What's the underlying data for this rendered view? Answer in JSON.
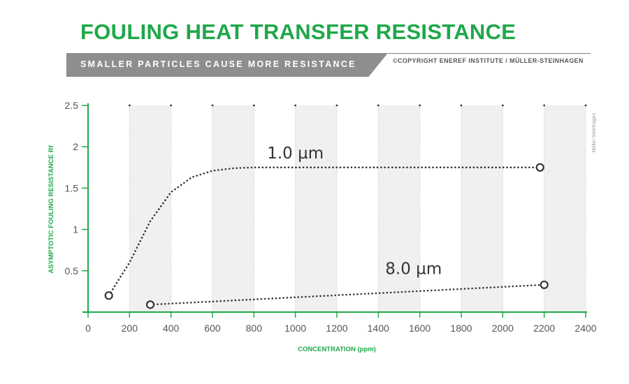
{
  "header": {
    "title": "FOULING HEAT TRANSFER RESISTANCE",
    "subtitle": "SMALLER PARTICLES CAUSE MORE RESISTANCE",
    "copyright": "©COPYRIGHT ENEREF INSTITUTE / MÜLLER-STEINHAGEN"
  },
  "colors": {
    "accent": "#1fa84a",
    "banner": "#8d8e8f",
    "series": "#333333",
    "panel": "#f0f0f0"
  },
  "chart_data": {
    "type": "line",
    "title": "FOULING HEAT TRANSFER RESISTANCE",
    "subtitle": "SMALLER PARTICLES CAUSE MORE RESISTANCE",
    "xlabel": "CONCENTRATION (ppm)",
    "ylabel": "ASYMPTOTIC FOULING RESISTANCE Rf",
    "xlim": [
      0,
      2400
    ],
    "ylim": [
      0,
      2.5
    ],
    "xticks": [
      0,
      200,
      400,
      600,
      800,
      1000,
      1200,
      1400,
      1600,
      1800,
      2000,
      2200,
      2400
    ],
    "yticks": [
      0.5,
      1,
      1.5,
      2,
      2.5
    ],
    "xtick_labels": [
      "0",
      "200",
      "400",
      "600",
      "800",
      "1000",
      "1200",
      "1400",
      "1600",
      "1800",
      "2000",
      "2200",
      "2400"
    ],
    "ytick_labels": [
      "0.5",
      "1",
      "1.5",
      "2",
      "2.5"
    ],
    "grid": "vertical dotted",
    "watermark": "Müller-Steinhagen",
    "series": [
      {
        "name": "1.0 µm",
        "line_style": "dotted",
        "x": [
          100,
          200,
          300,
          400,
          500,
          600,
          700,
          800,
          1000,
          1500,
          2000,
          2180
        ],
        "y": [
          0.2,
          0.6,
          1.1,
          1.45,
          1.63,
          1.71,
          1.74,
          1.75,
          1.75,
          1.75,
          1.75,
          1.75
        ],
        "endpoints": [
          [
            100,
            0.2
          ],
          [
            2180,
            1.75
          ]
        ]
      },
      {
        "name": "8.0 µm",
        "line_style": "dotted",
        "x": [
          300,
          2200
        ],
        "y": [
          0.09,
          0.33
        ],
        "endpoints": [
          [
            300,
            0.09
          ],
          [
            2200,
            0.33
          ]
        ]
      }
    ]
  }
}
